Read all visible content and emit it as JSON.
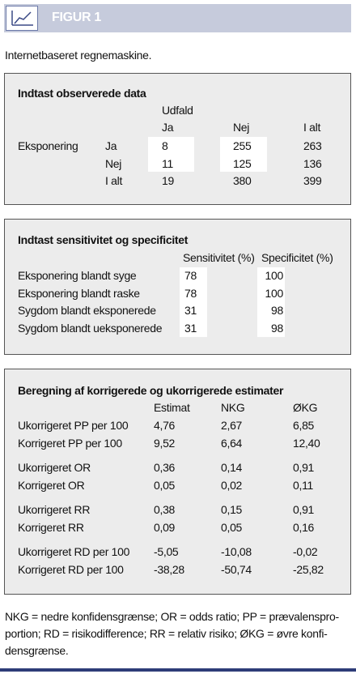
{
  "header": {
    "label": "FIGUR 1"
  },
  "caption": "Internetbaseret regnemaskine.",
  "observed": {
    "title": "Indtast observerede data",
    "group_label": "Udfald",
    "columns": [
      "Ja",
      "Nej",
      "I alt"
    ],
    "row_group": "Eksponering",
    "rows": [
      {
        "label": "Ja",
        "values": [
          "8",
          "255",
          "263"
        ]
      },
      {
        "label": "Nej",
        "values": [
          "11",
          "125",
          "136"
        ]
      },
      {
        "label": "I alt",
        "values": [
          "19",
          "380",
          "399"
        ]
      }
    ]
  },
  "sensspec": {
    "title": "Indtast sensitivitet og specificitet",
    "columns": [
      "Sensitivitet (%)",
      "Specificitet (%)"
    ],
    "rows": [
      {
        "label": "Eksponering blandt syge",
        "values": [
          "78",
          "100"
        ]
      },
      {
        "label": "Eksponering blandt raske",
        "values": [
          "78",
          "100"
        ]
      },
      {
        "label": "Sygdom blandt eksponerede",
        "values": [
          "31",
          "98"
        ]
      },
      {
        "label": "Sygdom blandt ueksponerede",
        "values": [
          "31",
          "98"
        ]
      }
    ]
  },
  "estimates": {
    "title": "Beregning af korrigerede og ukorrigerede estimater",
    "columns": [
      "Estimat",
      "NKG",
      "ØKG"
    ],
    "rows": [
      {
        "label": "Ukorrigeret PP per 100",
        "values": [
          "4,76",
          "2,67",
          "6,85"
        ]
      },
      {
        "label": "Korrigeret PP per 100",
        "values": [
          "9,52",
          "6,64",
          "12,40"
        ]
      },
      {
        "label": "Ukorrigeret OR",
        "values": [
          "0,36",
          "0,14",
          "0,91"
        ]
      },
      {
        "label": "Korrigeret OR",
        "values": [
          "0,05",
          "0,02",
          "0,11"
        ]
      },
      {
        "label": "Ukorrigeret RR",
        "values": [
          "0,38",
          "0,15",
          "0,91"
        ]
      },
      {
        "label": "Korrigeret RR",
        "values": [
          "0,09",
          "0,05",
          "0,16"
        ]
      },
      {
        "label": "Ukorrigeret RD per 100",
        "values": [
          "-5,05",
          "-10,08",
          "-0,02"
        ]
      },
      {
        "label": "Korrigeret RD per 100",
        "values": [
          "-38,28",
          "-50,74",
          "-25,82"
        ]
      }
    ]
  },
  "footnote": [
    "NKG = nedre konfidensgrænse;  OR = odds ratio;  PP = prævalenspro-",
    "portion;  RD = risikodifference;  RR = relativ risiko;  ØKG = øvre konfi-",
    "densgrænse."
  ]
}
